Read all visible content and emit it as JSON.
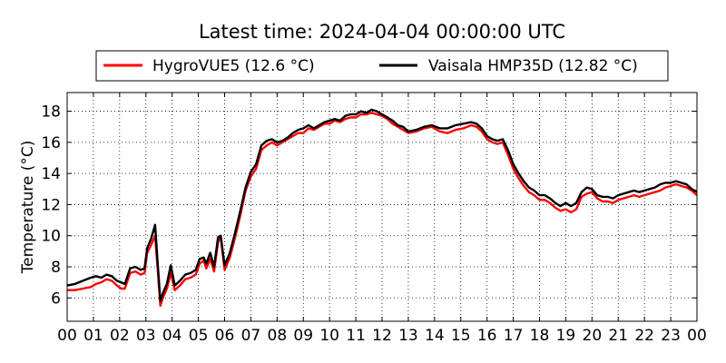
{
  "chart_data": {
    "type": "line",
    "title": "Latest time: 2024-04-04 00:00:00 UTC",
    "xlabel": "",
    "ylabel": "Temperature (°C)",
    "xlim": [
      0,
      24
    ],
    "ylim": [
      4.5,
      19.2
    ],
    "x_ticks": [
      0,
      1,
      2,
      3,
      4,
      5,
      6,
      7,
      8,
      9,
      10,
      11,
      12,
      13,
      14,
      15,
      16,
      17,
      18,
      19,
      20,
      21,
      22,
      23,
      24
    ],
    "x_tick_labels": [
      "00",
      "01",
      "02",
      "03",
      "04",
      "05",
      "06",
      "07",
      "08",
      "09",
      "10",
      "11",
      "12",
      "13",
      "14",
      "15",
      "16",
      "17",
      "18",
      "19",
      "20",
      "21",
      "22",
      "23",
      "00"
    ],
    "y_ticks": [
      6,
      8,
      10,
      12,
      14,
      16,
      18
    ],
    "y_tick_labels": [
      "6",
      "8",
      "10",
      "12",
      "14",
      "16",
      "18"
    ],
    "grid": true,
    "legend_position": "top",
    "series": [
      {
        "name": "HygroVUE5 (12.6 °C)",
        "color": "#ff0000",
        "x": [
          0,
          0.3,
          0.6,
          0.9,
          1.1,
          1.3,
          1.5,
          1.7,
          1.9,
          2.05,
          2.2,
          2.4,
          2.6,
          2.8,
          2.95,
          3.05,
          3.2,
          3.35,
          3.45,
          3.55,
          3.65,
          3.8,
          3.95,
          4.1,
          4.3,
          4.5,
          4.7,
          4.9,
          5.05,
          5.2,
          5.3,
          5.45,
          5.6,
          5.75,
          5.85,
          6.0,
          6.2,
          6.4,
          6.6,
          6.8,
          7.0,
          7.2,
          7.4,
          7.6,
          7.8,
          8.0,
          8.2,
          8.4,
          8.6,
          8.8,
          9.0,
          9.2,
          9.4,
          9.6,
          9.8,
          10.0,
          10.2,
          10.4,
          10.6,
          10.8,
          11.0,
          11.2,
          11.4,
          11.6,
          11.8,
          12.0,
          12.2,
          12.4,
          12.6,
          12.8,
          13.0,
          13.3,
          13.6,
          13.9,
          14.2,
          14.5,
          14.8,
          15.1,
          15.4,
          15.6,
          15.8,
          16.0,
          16.2,
          16.4,
          16.6,
          16.8,
          17.0,
          17.2,
          17.4,
          17.6,
          17.8,
          18.0,
          18.2,
          18.4,
          18.6,
          18.8,
          19.0,
          19.2,
          19.4,
          19.6,
          19.8,
          20.0,
          20.2,
          20.4,
          20.6,
          20.8,
          21.0,
          21.2,
          21.4,
          21.6,
          21.8,
          22.0,
          22.2,
          22.4,
          22.6,
          22.8,
          23.0,
          23.2,
          23.4,
          23.6,
          23.8,
          24.0
        ],
        "y": [
          6.5,
          6.5,
          6.6,
          6.7,
          6.9,
          7.0,
          7.2,
          7.1,
          6.8,
          6.6,
          6.6,
          7.6,
          7.7,
          7.5,
          7.6,
          8.9,
          9.4,
          10.0,
          7.8,
          5.5,
          6.0,
          6.6,
          7.6,
          6.5,
          6.8,
          7.2,
          7.3,
          7.5,
          8.2,
          8.4,
          7.9,
          8.5,
          7.7,
          9.6,
          9.9,
          7.8,
          8.6,
          9.9,
          11.3,
          12.9,
          13.8,
          14.3,
          15.5,
          15.8,
          16.0,
          15.8,
          16.0,
          16.2,
          16.4,
          16.6,
          16.6,
          16.9,
          16.8,
          17.0,
          17.2,
          17.2,
          17.4,
          17.3,
          17.5,
          17.6,
          17.6,
          17.8,
          17.8,
          17.9,
          17.8,
          17.7,
          17.5,
          17.2,
          17.0,
          16.8,
          16.6,
          16.7,
          16.9,
          17.0,
          16.7,
          16.6,
          16.8,
          16.9,
          17.1,
          17.0,
          16.7,
          16.2,
          16.0,
          15.9,
          16.0,
          15.2,
          14.3,
          13.7,
          13.2,
          12.8,
          12.6,
          12.3,
          12.3,
          12.1,
          11.8,
          11.6,
          11.7,
          11.5,
          11.7,
          12.5,
          12.7,
          12.8,
          12.4,
          12.2,
          12.2,
          12.1,
          12.3,
          12.4,
          12.5,
          12.6,
          12.5,
          12.6,
          12.7,
          12.8,
          12.9,
          13.1,
          13.2,
          13.3,
          13.2,
          13.1,
          12.9,
          12.6
        ]
      },
      {
        "name": "Vaisala HMP35D (12.82 °C)",
        "color": "#000000",
        "x": [
          0,
          0.3,
          0.6,
          0.9,
          1.1,
          1.3,
          1.5,
          1.7,
          1.9,
          2.05,
          2.2,
          2.4,
          2.6,
          2.8,
          2.95,
          3.05,
          3.2,
          3.35,
          3.45,
          3.55,
          3.65,
          3.8,
          3.95,
          4.1,
          4.3,
          4.5,
          4.7,
          4.9,
          5.05,
          5.2,
          5.3,
          5.45,
          5.6,
          5.75,
          5.85,
          6.0,
          6.2,
          6.4,
          6.6,
          6.8,
          7.0,
          7.2,
          7.4,
          7.6,
          7.8,
          8.0,
          8.2,
          8.4,
          8.6,
          8.8,
          9.0,
          9.2,
          9.4,
          9.6,
          9.8,
          10.0,
          10.2,
          10.4,
          10.6,
          10.8,
          11.0,
          11.2,
          11.4,
          11.6,
          11.8,
          12.0,
          12.2,
          12.4,
          12.6,
          12.8,
          13.0,
          13.3,
          13.6,
          13.9,
          14.2,
          14.5,
          14.8,
          15.1,
          15.4,
          15.6,
          15.8,
          16.0,
          16.2,
          16.4,
          16.6,
          16.8,
          17.0,
          17.2,
          17.4,
          17.6,
          17.8,
          18.0,
          18.2,
          18.4,
          18.6,
          18.8,
          19.0,
          19.2,
          19.4,
          19.6,
          19.8,
          20.0,
          20.2,
          20.4,
          20.6,
          20.8,
          21.0,
          21.2,
          21.4,
          21.6,
          21.8,
          22.0,
          22.2,
          22.4,
          22.6,
          22.8,
          23.0,
          23.2,
          23.4,
          23.6,
          23.8,
          24.0
        ],
        "y": [
          6.8,
          6.9,
          7.1,
          7.3,
          7.4,
          7.3,
          7.5,
          7.4,
          7.1,
          7.0,
          6.9,
          7.9,
          8.0,
          7.8,
          7.9,
          9.2,
          9.8,
          10.7,
          8.2,
          5.8,
          6.3,
          6.9,
          8.1,
          6.8,
          7.1,
          7.5,
          7.6,
          7.8,
          8.5,
          8.6,
          8.2,
          8.9,
          8.0,
          9.9,
          10.0,
          8.1,
          8.9,
          10.2,
          11.6,
          13.1,
          14.1,
          14.6,
          15.8,
          16.1,
          16.2,
          16.0,
          16.1,
          16.3,
          16.6,
          16.8,
          16.9,
          17.1,
          16.9,
          17.1,
          17.3,
          17.4,
          17.5,
          17.4,
          17.7,
          17.8,
          17.8,
          18.0,
          17.9,
          18.1,
          18.0,
          17.8,
          17.6,
          17.4,
          17.1,
          17.0,
          16.7,
          16.8,
          17.0,
          17.1,
          16.9,
          16.9,
          17.1,
          17.2,
          17.3,
          17.2,
          16.9,
          16.4,
          16.2,
          16.1,
          16.2,
          15.5,
          14.6,
          14.0,
          13.5,
          13.1,
          12.9,
          12.6,
          12.6,
          12.4,
          12.1,
          11.9,
          12.1,
          11.9,
          12.1,
          12.8,
          13.1,
          13.0,
          12.6,
          12.5,
          12.5,
          12.4,
          12.6,
          12.7,
          12.8,
          12.9,
          12.8,
          12.9,
          13.0,
          13.1,
          13.3,
          13.4,
          13.4,
          13.5,
          13.4,
          13.3,
          13.0,
          12.82
        ]
      }
    ]
  }
}
